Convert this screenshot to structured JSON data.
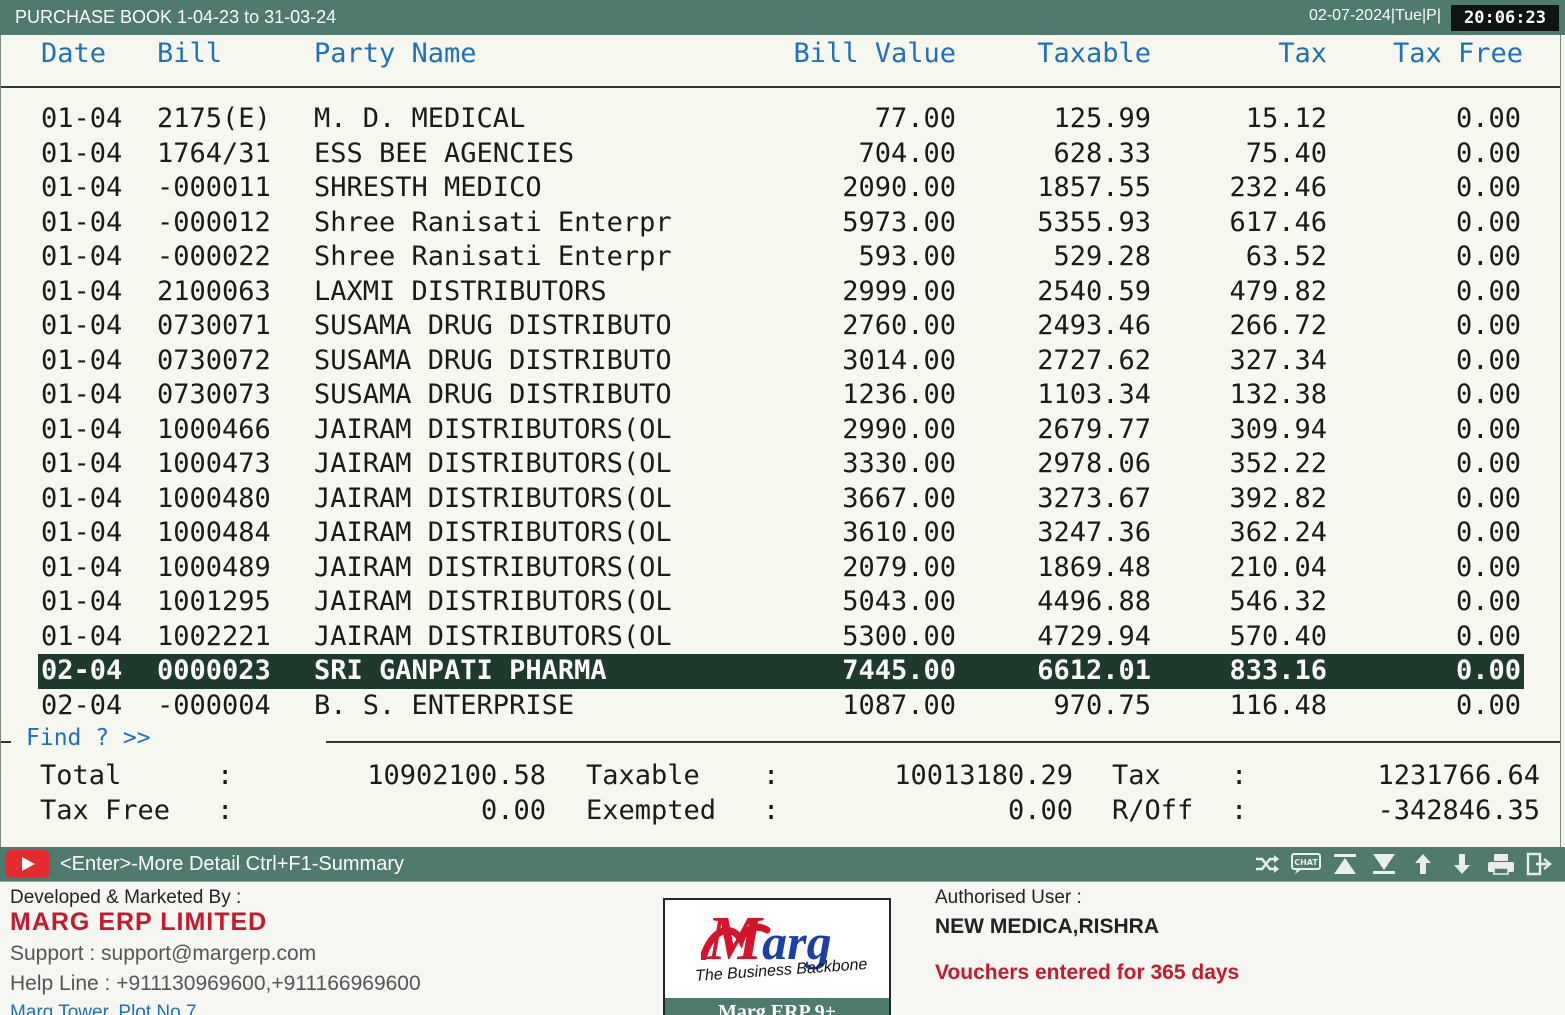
{
  "titlebar": {
    "title": "PURCHASE BOOK 1-04-23 to 31-03-24",
    "datestamp": "02-07-2024|Tue|P|",
    "clock": "20:06:23"
  },
  "columns": {
    "date": "Date",
    "bill": "Bill",
    "party": "Party Name",
    "bill_value": "Bill Value",
    "taxable": "Taxable",
    "tax": "Tax",
    "tax_free": "Tax Free"
  },
  "rows": [
    {
      "date": "01-04",
      "bill": "2175(E)",
      "party": "M. D. MEDICAL",
      "bill_value": "77.00",
      "taxable": "125.99",
      "tax": "15.12",
      "tax_free": "0.00"
    },
    {
      "date": "01-04",
      "bill": "1764/31",
      "party": "ESS BEE AGENCIES",
      "bill_value": "704.00",
      "taxable": "628.33",
      "tax": "75.40",
      "tax_free": "0.00"
    },
    {
      "date": "01-04",
      "bill": "-000011",
      "party": "SHRESTH MEDICO",
      "bill_value": "2090.00",
      "taxable": "1857.55",
      "tax": "232.46",
      "tax_free": "0.00"
    },
    {
      "date": "01-04",
      "bill": "-000012",
      "party": "Shree Ranisati Enterpr",
      "bill_value": "5973.00",
      "taxable": "5355.93",
      "tax": "617.46",
      "tax_free": "0.00"
    },
    {
      "date": "01-04",
      "bill": "-000022",
      "party": "Shree Ranisati Enterpr",
      "bill_value": "593.00",
      "taxable": "529.28",
      "tax": "63.52",
      "tax_free": "0.00"
    },
    {
      "date": "01-04",
      "bill": "2100063",
      "party": "LAXMI DISTRIBUTORS",
      "bill_value": "2999.00",
      "taxable": "2540.59",
      "tax": "479.82",
      "tax_free": "0.00"
    },
    {
      "date": "01-04",
      "bill": "0730071",
      "party": "SUSAMA DRUG DISTRIBUTO",
      "bill_value": "2760.00",
      "taxable": "2493.46",
      "tax": "266.72",
      "tax_free": "0.00"
    },
    {
      "date": "01-04",
      "bill": "0730072",
      "party": "SUSAMA DRUG DISTRIBUTO",
      "bill_value": "3014.00",
      "taxable": "2727.62",
      "tax": "327.34",
      "tax_free": "0.00"
    },
    {
      "date": "01-04",
      "bill": "0730073",
      "party": "SUSAMA DRUG DISTRIBUTO",
      "bill_value": "1236.00",
      "taxable": "1103.34",
      "tax": "132.38",
      "tax_free": "0.00"
    },
    {
      "date": "01-04",
      "bill": "1000466",
      "party": "JAIRAM DISTRIBUTORS(OL",
      "bill_value": "2990.00",
      "taxable": "2679.77",
      "tax": "309.94",
      "tax_free": "0.00"
    },
    {
      "date": "01-04",
      "bill": "1000473",
      "party": "JAIRAM DISTRIBUTORS(OL",
      "bill_value": "3330.00",
      "taxable": "2978.06",
      "tax": "352.22",
      "tax_free": "0.00"
    },
    {
      "date": "01-04",
      "bill": "1000480",
      "party": "JAIRAM DISTRIBUTORS(OL",
      "bill_value": "3667.00",
      "taxable": "3273.67",
      "tax": "392.82",
      "tax_free": "0.00"
    },
    {
      "date": "01-04",
      "bill": "1000484",
      "party": "JAIRAM DISTRIBUTORS(OL",
      "bill_value": "3610.00",
      "taxable": "3247.36",
      "tax": "362.24",
      "tax_free": "0.00"
    },
    {
      "date": "01-04",
      "bill": "1000489",
      "party": "JAIRAM DISTRIBUTORS(OL",
      "bill_value": "2079.00",
      "taxable": "1869.48",
      "tax": "210.04",
      "tax_free": "0.00"
    },
    {
      "date": "01-04",
      "bill": "1001295",
      "party": "JAIRAM DISTRIBUTORS(OL",
      "bill_value": "5043.00",
      "taxable": "4496.88",
      "tax": "546.32",
      "tax_free": "0.00"
    },
    {
      "date": "01-04",
      "bill": "1002221",
      "party": "JAIRAM DISTRIBUTORS(OL",
      "bill_value": "5300.00",
      "taxable": "4729.94",
      "tax": "570.40",
      "tax_free": "0.00"
    },
    {
      "date": "02-04",
      "bill": "0000023",
      "party": "SRI GANPATI PHARMA",
      "bill_value": "7445.00",
      "taxable": "6612.01",
      "tax": "833.16",
      "tax_free": "0.00",
      "selected": true
    },
    {
      "date": "02-04",
      "bill": "-000004",
      "party": "B. S. ENTERPRISE",
      "bill_value": "1087.00",
      "taxable": "970.75",
      "tax": "116.48",
      "tax_free": "0.00"
    }
  ],
  "find": {
    "label": "Find ? >>"
  },
  "totals": {
    "total_label": "Total",
    "total_value": "10902100.58",
    "taxable_label": "Taxable",
    "taxable_value": "10013180.29",
    "tax_label": "Tax",
    "tax_value": "1231766.64",
    "taxfree_label": "Tax Free",
    "taxfree_value": "0.00",
    "exempted_label": "Exempted",
    "exempted_value": "0.00",
    "roff_label": "R/Off",
    "roff_value": "-342846.35",
    "colon": ":"
  },
  "statusbar": {
    "hint": "<Enter>-More Detail Ctrl+F1-Summary",
    "icons": [
      "shuffle-icon",
      "chat-icon",
      "first-record-icon",
      "last-record-icon",
      "move-up-icon",
      "move-down-icon",
      "print-icon",
      "exit-icon"
    ],
    "chat_label": "CHAT"
  },
  "footer": {
    "developed_by": "Developed & Marketed By :",
    "company": "MARG ERP LIMITED",
    "support": "Support : support@margerp.com",
    "helpline": "Help Line : +911130969600,+911166969600",
    "address": "Marg Tower, Plot No 7",
    "logo_brand": "Marg",
    "logo_tagline": "The Business Backbone",
    "logo_product": "Marg ERP 9+",
    "authorised_label": "Authorised User :",
    "authorised_user": "NEW MEDICA,RISHRA",
    "vouchers_note": "Vouchers entered for 365 days"
  },
  "colors": {
    "title_bar": "#4f7a6e",
    "header_text": "#1f6fbf",
    "selected_row": "#1e3a2c",
    "brand_red": "#c8182e"
  }
}
